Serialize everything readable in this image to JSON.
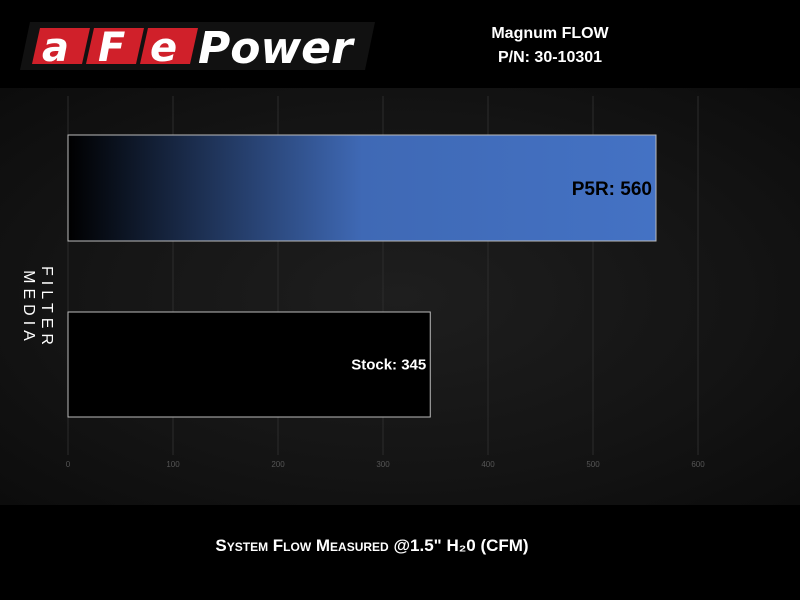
{
  "header": {
    "logo_text": "aFePower",
    "product_line1": "Magnum FLOW",
    "product_line2": "P/N: 30-10301"
  },
  "chart_data": {
    "type": "bar",
    "orientation": "horizontal",
    "categories": [
      "P5R",
      "Stock"
    ],
    "values": [
      560,
      345
    ],
    "data_labels": [
      "P5R: 560",
      "Stock: 345"
    ],
    "xlabel": "System Flow Measured @1.5\" H₂0 (CFM)",
    "ylabel": "FILTER MEDIA",
    "xlim": [
      0,
      600
    ],
    "xticks": [
      "0",
      "100",
      "200",
      "300",
      "400",
      "500",
      "600"
    ],
    "grid": true,
    "colors": {
      "P5R": "#4472c4",
      "Stock": "#000000"
    }
  }
}
